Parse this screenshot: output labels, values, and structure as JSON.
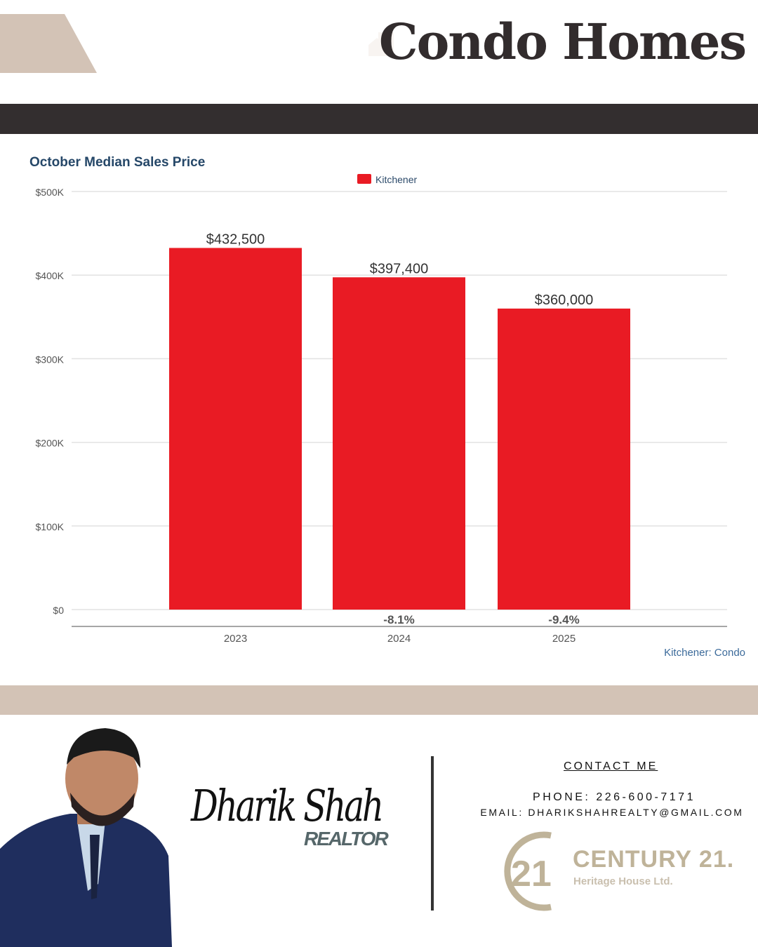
{
  "header": {
    "title": "Condo Homes"
  },
  "chart_data": {
    "type": "bar",
    "title": "October Median Sales Price",
    "legend": [
      {
        "label": "Kitchener",
        "color": "#e91b24"
      }
    ],
    "legend_position": "top-center",
    "categories": [
      "2023",
      "2024",
      "2025"
    ],
    "values": [
      432500,
      397400,
      360000
    ],
    "value_labels": [
      "$432,500",
      "$397,400",
      "$360,000"
    ],
    "change_labels": [
      "",
      "-8.1%",
      "-9.4%"
    ],
    "yticks": [
      0,
      100000,
      200000,
      300000,
      400000,
      500000
    ],
    "ytick_labels": [
      "$0",
      "$100K",
      "$200K",
      "$300K",
      "$400K",
      "$500K"
    ],
    "ylim": [
      0,
      500000
    ],
    "grid": true,
    "source": "Kitchener: Condo",
    "bar_color": "#e91b24"
  },
  "agent": {
    "name": "Dharik Shah",
    "role": "REALTOR"
  },
  "contact": {
    "heading": "CONTACT ME",
    "phone": "PHONE: 226-600-7171",
    "email": "EMAIL: DHARIKSHAHREALTY@GMAIL.COM"
  },
  "brokerage": {
    "logo_number": "21",
    "name": "CENTURY 21.",
    "sub": "Heritage House Ltd."
  }
}
